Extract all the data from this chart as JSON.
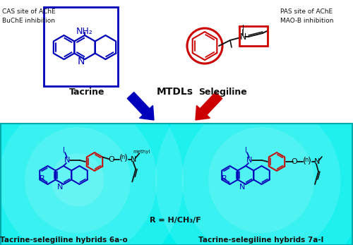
{
  "bg_color": "#ffffff",
  "blue": "#0000bb",
  "red": "#cc0000",
  "black": "#111111",
  "cyan_grad_top": "#00f0f0",
  "cyan_grad_bot": "#70ffff",
  "cas_text": "CAS site of AChE\nBuChE inhibition",
  "pas_text": "PAS site of AChE\nMAO-B inhibition",
  "mtdls_text": "MTDLs",
  "tacrine_label": "Tacrine",
  "selegiline_label": "Selegiline",
  "hybrid1_label": "Tacrine-selegiline hybrids 6a-o",
  "hybrid2_label": "Tacrine-selegiline hybrids 7a-l",
  "r_label": "R = H/CH₃/F"
}
